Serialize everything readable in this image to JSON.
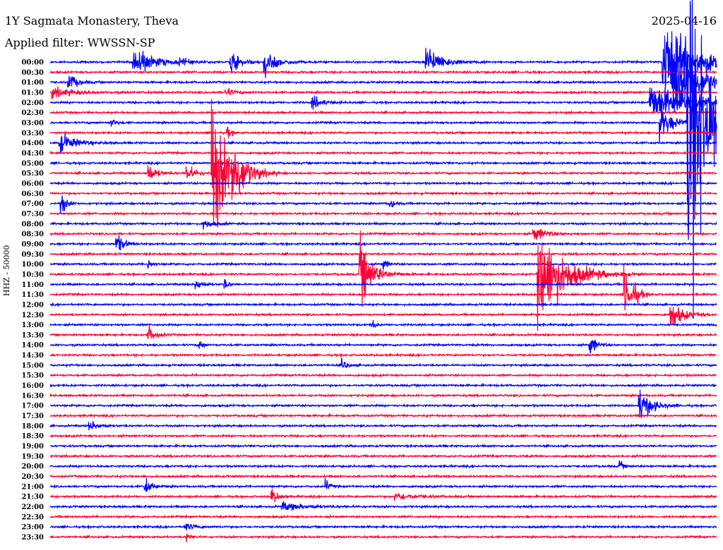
{
  "header": {
    "station": "1Y Sagmata Monastery, Theva",
    "date": "2025-04-16",
    "filter": "Applied filter: WWSSN-SP",
    "channel_label": "HHZ - 50000"
  },
  "chart_data": {
    "type": "line",
    "subtype": "helicorder",
    "minutes_per_line": 30,
    "colors": [
      "#0000ff",
      "#ff0033"
    ],
    "row_labels": [
      "00:00",
      "00:30",
      "01:00",
      "01:30",
      "02:00",
      "02:30",
      "03:00",
      "03:30",
      "04:00",
      "04:30",
      "05:00",
      "05:30",
      "06:00",
      "06:30",
      "07:00",
      "07:30",
      "08:00",
      "08:30",
      "09:00",
      "09:30",
      "10:00",
      "10:30",
      "11:00",
      "11:30",
      "12:00",
      "12:30",
      "13:00",
      "13:30",
      "14:00",
      "14:30",
      "15:00",
      "15:30",
      "16:00",
      "16:30",
      "17:00",
      "17:30",
      "18:00",
      "18:30",
      "19:00",
      "19:30",
      "20:00",
      "20:30",
      "21:00",
      "21:30",
      "22:00",
      "22:30",
      "23:00",
      "23:30"
    ],
    "events_row_minute_amplitude_duration": [
      [
        0,
        3.75,
        16,
        1.2
      ],
      [
        0,
        5.85,
        4,
        0.5
      ],
      [
        0,
        8.13,
        12,
        0.6
      ],
      [
        0,
        9.66,
        13,
        0.8
      ],
      [
        0,
        16.94,
        16,
        1.0
      ],
      [
        0,
        27.6,
        40,
        2.4
      ],
      [
        2,
        0.83,
        10,
        0.5
      ],
      [
        2,
        28.0,
        30,
        2.0
      ],
      [
        3,
        0.1,
        5,
        1.5
      ],
      [
        3,
        7.9,
        5,
        0.4
      ],
      [
        4,
        11.82,
        7,
        0.6
      ],
      [
        4,
        27.0,
        20,
        2.5
      ],
      [
        6,
        2.73,
        5,
        0.3
      ],
      [
        6,
        27.45,
        18,
        0.8
      ],
      [
        6,
        28.7,
        210,
        1.2
      ],
      [
        7,
        7.98,
        5,
        0.3
      ],
      [
        8,
        0.44,
        10,
        1.0
      ],
      [
        11,
        4.42,
        10,
        0.5
      ],
      [
        11,
        6.16,
        9,
        0.5
      ],
      [
        11,
        7.28,
        75,
        1.0
      ],
      [
        11,
        8.23,
        22,
        0.8
      ],
      [
        14,
        0.51,
        12,
        0.3
      ],
      [
        14,
        15.32,
        5,
        0.3
      ],
      [
        16,
        6.9,
        6,
        0.5
      ],
      [
        17,
        21.74,
        8,
        0.8
      ],
      [
        18,
        2.99,
        10,
        0.5
      ],
      [
        20,
        4.42,
        5,
        0.3
      ],
      [
        20,
        15.0,
        5,
        0.3
      ],
      [
        21,
        13.95,
        35,
        0.8
      ],
      [
        21,
        21.96,
        55,
        1.6
      ],
      [
        22,
        6.58,
        6,
        0.4
      ],
      [
        22,
        7.85,
        7,
        0.2
      ],
      [
        23,
        25.87,
        25,
        0.5
      ],
      [
        23,
        26.3,
        6,
        0.3
      ],
      [
        25,
        27.93,
        15,
        0.8
      ],
      [
        26,
        14.52,
        5,
        0.2
      ],
      [
        27,
        4.42,
        10,
        0.4
      ],
      [
        28,
        24.31,
        10,
        0.4
      ],
      [
        28,
        6.74,
        7,
        0.2
      ],
      [
        30,
        13.15,
        5,
        0.4
      ],
      [
        34,
        26.53,
        16,
        0.8
      ],
      [
        36,
        1.78,
        5,
        0.6
      ],
      [
        40,
        25.65,
        6,
        0.2
      ],
      [
        42,
        4.29,
        8,
        0.4
      ],
      [
        42,
        12.42,
        7,
        0.2
      ],
      [
        43,
        9.98,
        8,
        0.4
      ],
      [
        43,
        15.54,
        4,
        1.2
      ],
      [
        44,
        10.45,
        4,
        1.5
      ],
      [
        46,
        6.07,
        4,
        0.6
      ],
      [
        47,
        6.16,
        5,
        0.2
      ]
    ]
  }
}
